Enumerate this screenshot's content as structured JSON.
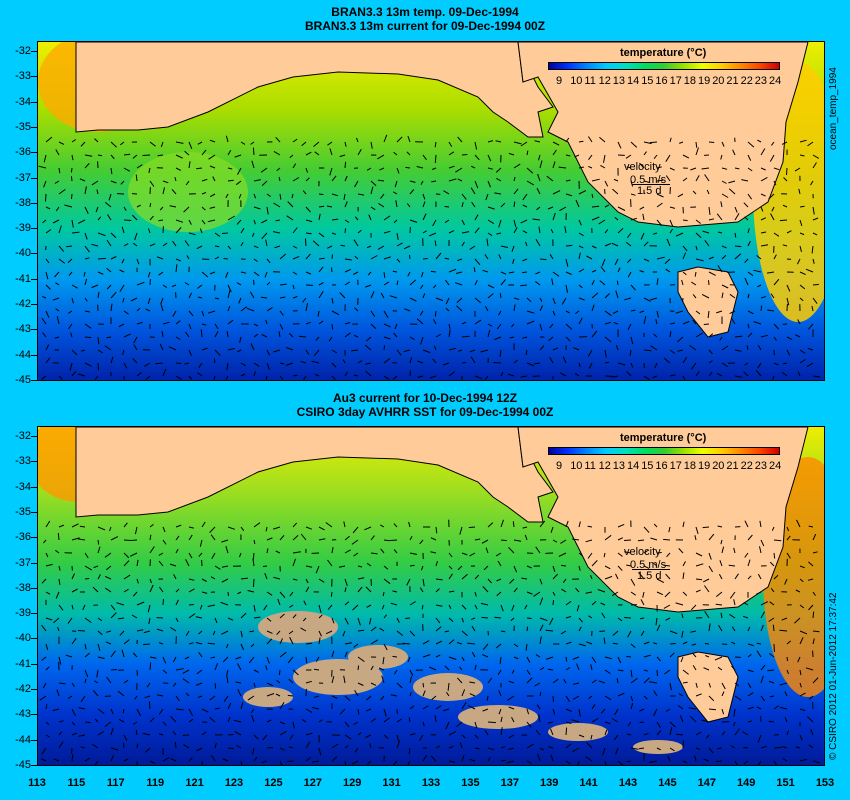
{
  "top_panel": {
    "title_line1": "BRAN3.3 13m temp. 09-Dec-1994",
    "title_line2": "BRAN3.3 13m current for 09-Dec-1994 00Z",
    "colorbar_title": "temperature (°C)",
    "velocity_label": "velocity",
    "velocity_value": "0.5 m/s",
    "velocity_scale": "1.5 d",
    "side_label": "ocean_temp_1994"
  },
  "bottom_panel": {
    "title_line1": "Au3 current for 10-Dec-1994 12Z",
    "title_line2": "CSIRO 3day AVHRR SST for 09-Dec-1994 00Z",
    "colorbar_title": "temperature (°C)",
    "velocity_label": "velocity",
    "velocity_value": "0.5 m/s",
    "velocity_scale": "1.5 d",
    "side_label": "© CSIRO 2012  01-Jun-2012 17:37:42"
  },
  "colorbar_ticks": [
    "9",
    "10",
    "11",
    "12",
    "13",
    "14",
    "15",
    "16",
    "17",
    "18",
    "19",
    "20",
    "21",
    "22",
    "23",
    "24"
  ],
  "lat_ticks": [
    "-32",
    "-33",
    "-34",
    "-35",
    "-36",
    "-37",
    "-38",
    "-39",
    "-40",
    "-41",
    "-42",
    "-43",
    "-44",
    "-45"
  ],
  "lon_ticks": [
    "113",
    "115",
    "117",
    "119",
    "121",
    "123",
    "125",
    "127",
    "129",
    "131",
    "133",
    "135",
    "137",
    "139",
    "141",
    "143",
    "145",
    "147",
    "149",
    "151",
    "153"
  ],
  "colors": {
    "background": "#00ccff",
    "land": "#ffcc99",
    "cloud": "#c8a882"
  }
}
